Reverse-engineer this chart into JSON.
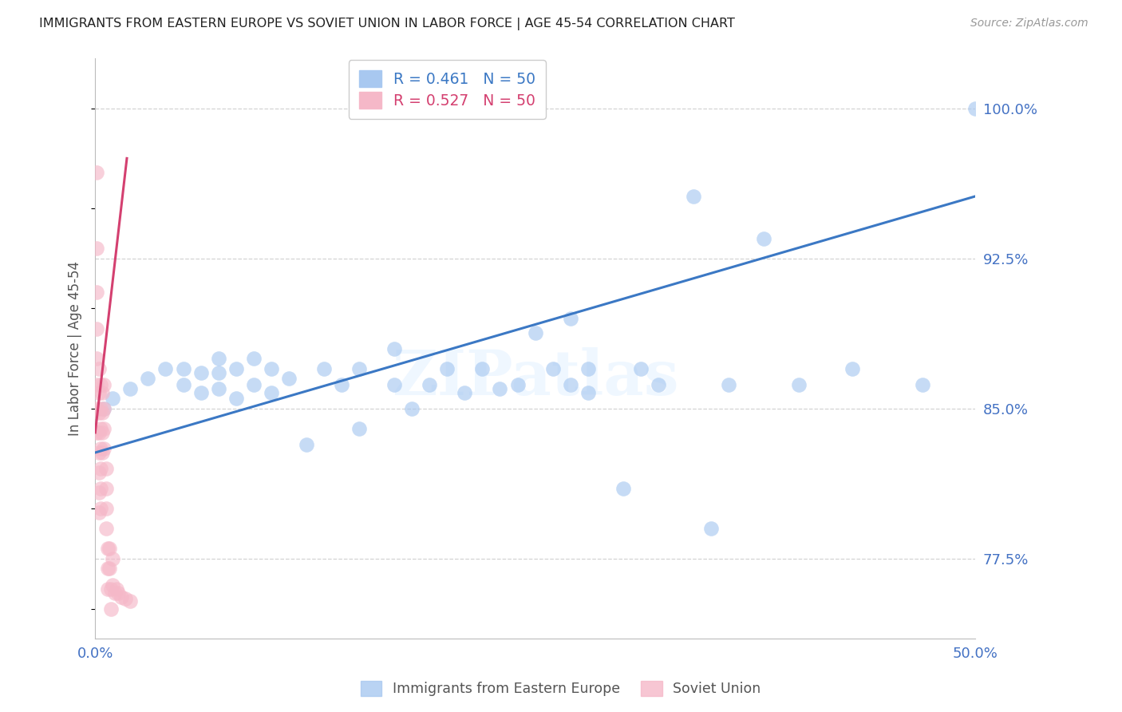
{
  "title": "IMMIGRANTS FROM EASTERN EUROPE VS SOVIET UNION IN LABOR FORCE | AGE 45-54 CORRELATION CHART",
  "source": "Source: ZipAtlas.com",
  "ylabel": "In Labor Force | Age 45-54",
  "y_tick_labels": [
    "77.5%",
    "85.0%",
    "92.5%",
    "100.0%"
  ],
  "y_tick_values": [
    0.775,
    0.85,
    0.925,
    1.0
  ],
  "x_lim": [
    0.0,
    0.5
  ],
  "y_lim": [
    0.735,
    1.025
  ],
  "legend1_label": "Immigrants from Eastern Europe",
  "legend2_label": "Soviet Union",
  "R1": 0.461,
  "N1": 50,
  "R2": 0.527,
  "N2": 50,
  "blue_color": "#a8c8f0",
  "pink_color": "#f5b8c8",
  "blue_line_color": "#3b78c4",
  "pink_line_color": "#d44070",
  "tick_color": "#4472c4",
  "grid_color": "#c8c8c8",
  "watermark": "ZIPatlas",
  "blue_scatter_x": [
    0.005,
    0.01,
    0.02,
    0.03,
    0.04,
    0.05,
    0.05,
    0.06,
    0.06,
    0.07,
    0.07,
    0.07,
    0.08,
    0.08,
    0.09,
    0.09,
    0.1,
    0.1,
    0.11,
    0.12,
    0.13,
    0.14,
    0.15,
    0.15,
    0.17,
    0.17,
    0.18,
    0.19,
    0.2,
    0.21,
    0.22,
    0.23,
    0.24,
    0.25,
    0.26,
    0.27,
    0.27,
    0.28,
    0.28,
    0.3,
    0.31,
    0.32,
    0.34,
    0.35,
    0.36,
    0.38,
    0.4,
    0.43,
    0.47,
    0.5
  ],
  "blue_scatter_y": [
    0.85,
    0.855,
    0.86,
    0.865,
    0.87,
    0.862,
    0.87,
    0.858,
    0.868,
    0.86,
    0.868,
    0.875,
    0.855,
    0.87,
    0.862,
    0.875,
    0.858,
    0.87,
    0.865,
    0.832,
    0.87,
    0.862,
    0.87,
    0.84,
    0.862,
    0.88,
    0.85,
    0.862,
    0.87,
    0.858,
    0.87,
    0.86,
    0.862,
    0.888,
    0.87,
    0.862,
    0.895,
    0.87,
    0.858,
    0.81,
    0.87,
    0.862,
    0.956,
    0.79,
    0.862,
    0.935,
    0.862,
    0.87,
    0.862,
    1.0
  ],
  "pink_scatter_x": [
    0.001,
    0.001,
    0.001,
    0.001,
    0.001,
    0.001,
    0.001,
    0.001,
    0.002,
    0.002,
    0.002,
    0.002,
    0.002,
    0.002,
    0.002,
    0.002,
    0.003,
    0.003,
    0.003,
    0.003,
    0.003,
    0.003,
    0.003,
    0.004,
    0.004,
    0.004,
    0.004,
    0.005,
    0.005,
    0.005,
    0.005,
    0.006,
    0.006,
    0.006,
    0.006,
    0.007,
    0.007,
    0.007,
    0.008,
    0.008,
    0.009,
    0.009,
    0.01,
    0.01,
    0.011,
    0.012,
    0.013,
    0.015,
    0.017,
    0.02
  ],
  "pink_scatter_y": [
    0.968,
    0.93,
    0.908,
    0.89,
    0.875,
    0.862,
    0.85,
    0.838,
    0.87,
    0.858,
    0.848,
    0.838,
    0.828,
    0.818,
    0.808,
    0.798,
    0.862,
    0.85,
    0.84,
    0.83,
    0.82,
    0.81,
    0.8,
    0.858,
    0.848,
    0.838,
    0.828,
    0.862,
    0.85,
    0.84,
    0.83,
    0.82,
    0.81,
    0.8,
    0.79,
    0.78,
    0.77,
    0.76,
    0.78,
    0.77,
    0.76,
    0.75,
    0.775,
    0.762,
    0.758,
    0.76,
    0.758,
    0.756,
    0.755,
    0.754
  ],
  "blue_line_x": [
    0.0,
    0.5
  ],
  "blue_line_y": [
    0.828,
    0.956
  ],
  "pink_line_x": [
    0.0,
    0.018
  ],
  "pink_line_y": [
    0.838,
    0.975
  ]
}
